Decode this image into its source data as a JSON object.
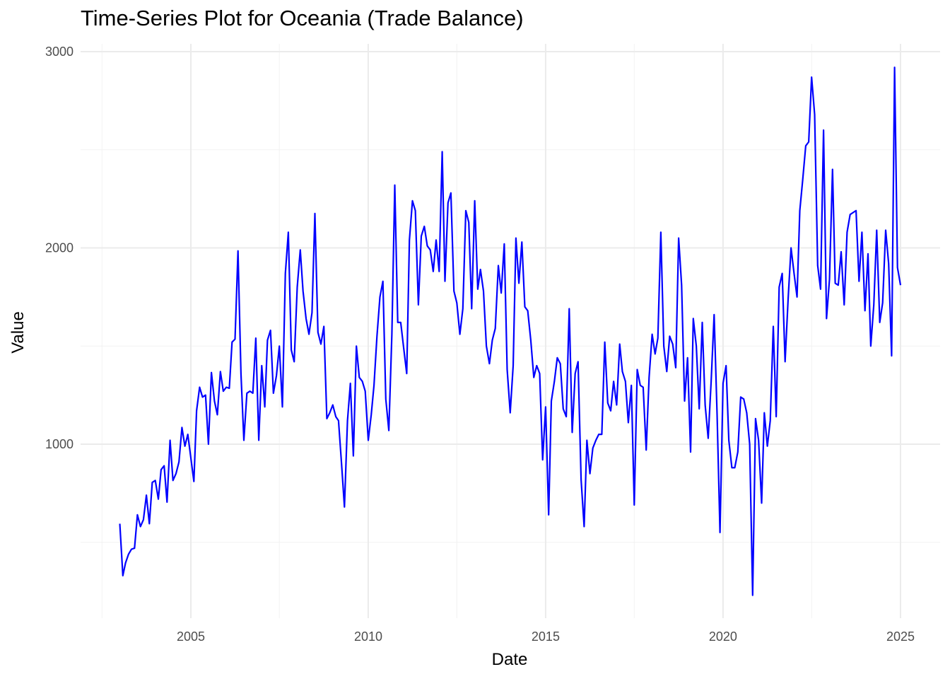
{
  "chart_data": {
    "type": "line",
    "title": "Time-Series Plot for Oceania (Trade Balance)",
    "xlabel": "Date",
    "ylabel": "Value",
    "x_ticks": [
      "2005",
      "2010",
      "2015",
      "2020",
      "2025"
    ],
    "y_ticks": [
      "1000",
      "2000",
      "3000"
    ],
    "xlim": [
      "2002-09-01",
      "2025-07-01"
    ],
    "ylim": [
      160,
      3040
    ],
    "grid": true,
    "legend": "none",
    "line_color": "#0000ff",
    "series": [
      {
        "x": [
          "2003-01-01",
          "2003-02-01",
          "2003-03-01",
          "2003-04-01",
          "2003-05-01",
          "2003-06-01",
          "2003-07-01",
          "2003-08-01",
          "2003-09-01",
          "2003-10-01",
          "2003-11-01",
          "2003-12-01",
          "2004-01-01",
          "2004-02-01",
          "2004-03-01",
          "2004-04-01",
          "2004-05-01",
          "2004-06-01",
          "2004-07-01",
          "2004-08-01",
          "2004-09-01",
          "2004-10-01",
          "2004-11-01",
          "2004-12-01",
          "2005-01-01",
          "2005-02-01",
          "2005-03-01",
          "2005-04-01",
          "2005-05-01",
          "2005-06-01",
          "2005-07-01",
          "2005-08-01",
          "2005-09-01",
          "2005-10-01",
          "2005-11-01",
          "2005-12-01",
          "2006-01-01",
          "2006-02-01",
          "2006-03-01",
          "2006-04-01",
          "2006-05-01",
          "2006-06-01",
          "2006-07-01",
          "2006-08-01",
          "2006-09-01",
          "2006-10-01",
          "2006-11-01",
          "2006-12-01",
          "2007-01-01",
          "2007-02-01",
          "2007-03-01",
          "2007-04-01",
          "2007-05-01",
          "2007-06-01",
          "2007-07-01",
          "2007-08-01",
          "2007-09-01",
          "2007-10-01",
          "2007-11-01",
          "2007-12-01",
          "2008-01-01",
          "2008-02-01",
          "2008-03-01",
          "2008-04-01",
          "2008-05-01",
          "2008-06-01",
          "2008-07-01",
          "2008-08-01",
          "2008-09-01",
          "2008-10-01",
          "2008-11-01",
          "2008-12-01",
          "2009-01-01",
          "2009-02-01",
          "2009-03-01",
          "2009-04-01",
          "2009-05-01",
          "2009-06-01",
          "2009-07-01",
          "2009-08-01",
          "2009-09-01",
          "2009-10-01",
          "2009-11-01",
          "2009-12-01",
          "2010-01-01",
          "2010-02-01",
          "2010-03-01",
          "2010-04-01",
          "2010-05-01",
          "2010-06-01",
          "2010-07-01",
          "2010-08-01",
          "2010-09-01",
          "2010-10-01",
          "2010-11-01",
          "2010-12-01",
          "2011-01-01",
          "2011-02-01",
          "2011-03-01",
          "2011-04-01",
          "2011-05-01",
          "2011-06-01",
          "2011-07-01",
          "2011-08-01",
          "2011-09-01",
          "2011-10-01",
          "2011-11-01",
          "2011-12-01",
          "2012-01-01",
          "2012-02-01",
          "2012-03-01",
          "2012-04-01",
          "2012-05-01",
          "2012-06-01",
          "2012-07-01",
          "2012-08-01",
          "2012-09-01",
          "2012-10-01",
          "2012-11-01",
          "2012-12-01",
          "2013-01-01",
          "2013-02-01",
          "2013-03-01",
          "2013-04-01",
          "2013-05-01",
          "2013-06-01",
          "2013-07-01",
          "2013-08-01",
          "2013-09-01",
          "2013-10-01",
          "2013-11-01",
          "2013-12-01",
          "2014-01-01",
          "2014-02-01",
          "2014-03-01",
          "2014-04-01",
          "2014-05-01",
          "2014-06-01",
          "2014-07-01",
          "2014-08-01",
          "2014-09-01",
          "2014-10-01",
          "2014-11-01",
          "2014-12-01",
          "2015-01-01",
          "2015-02-01",
          "2015-03-01",
          "2015-04-01",
          "2015-05-01",
          "2015-06-01",
          "2015-07-01",
          "2015-08-01",
          "2015-09-01",
          "2015-10-01",
          "2015-11-01",
          "2015-12-01",
          "2016-01-01",
          "2016-02-01",
          "2016-03-01",
          "2016-04-01",
          "2016-05-01",
          "2016-06-01",
          "2016-07-01",
          "2016-08-01",
          "2016-09-01",
          "2016-10-01",
          "2016-11-01",
          "2016-12-01",
          "2017-01-01",
          "2017-02-01",
          "2017-03-01",
          "2017-04-01",
          "2017-05-01",
          "2017-06-01",
          "2017-07-01",
          "2017-08-01",
          "2017-09-01",
          "2017-10-01",
          "2017-11-01",
          "2017-12-01",
          "2018-01-01",
          "2018-02-01",
          "2018-03-01",
          "2018-04-01",
          "2018-05-01",
          "2018-06-01",
          "2018-07-01",
          "2018-08-01",
          "2018-09-01",
          "2018-10-01",
          "2018-11-01",
          "2018-12-01",
          "2019-01-01",
          "2019-02-01",
          "2019-03-01",
          "2019-04-01",
          "2019-05-01",
          "2019-06-01",
          "2019-07-01",
          "2019-08-01",
          "2019-09-01",
          "2019-10-01",
          "2019-11-01",
          "2019-12-01",
          "2020-01-01",
          "2020-02-01",
          "2020-03-01",
          "2020-04-01",
          "2020-05-01",
          "2020-06-01",
          "2020-07-01",
          "2020-08-01",
          "2020-09-01",
          "2020-10-01",
          "2020-11-01",
          "2020-12-01",
          "2021-01-01",
          "2021-02-01",
          "2021-03-01",
          "2021-04-01",
          "2021-05-01",
          "2021-06-01",
          "2021-07-01",
          "2021-08-01",
          "2021-09-01",
          "2021-10-01",
          "2021-11-01",
          "2021-12-01",
          "2022-01-01",
          "2022-02-01",
          "2022-03-01",
          "2022-04-01",
          "2022-05-01",
          "2022-06-01",
          "2022-07-01",
          "2022-08-01",
          "2022-09-01",
          "2022-10-01",
          "2022-11-01",
          "2022-12-01",
          "2023-01-01",
          "2023-02-01",
          "2023-03-01",
          "2023-04-01",
          "2023-05-01",
          "2023-06-01",
          "2023-07-01",
          "2023-08-01",
          "2023-09-01",
          "2023-10-01",
          "2023-11-01",
          "2023-12-01",
          "2024-01-01",
          "2024-02-01",
          "2024-03-01",
          "2024-04-01",
          "2024-05-01",
          "2024-06-01",
          "2024-07-01",
          "2024-08-01",
          "2024-09-01",
          "2024-10-01",
          "2024-11-01",
          "2024-12-01",
          "2025-01-01"
        ],
        "values": [
          595,
          330,
          395,
          440,
          465,
          470,
          640,
          580,
          615,
          740,
          595,
          805,
          815,
          720,
          870,
          890,
          705,
          1020,
          815,
          850,
          910,
          1085,
          990,
          1050,
          930,
          810,
          1170,
          1290,
          1240,
          1250,
          1000,
          1365,
          1220,
          1150,
          1370,
          1270,
          1290,
          1285,
          1520,
          1535,
          1985,
          1360,
          1020,
          1260,
          1270,
          1260,
          1540,
          1020,
          1400,
          1190,
          1530,
          1580,
          1260,
          1350,
          1500,
          1190,
          1870,
          2080,
          1480,
          1420,
          1800,
          1990,
          1780,
          1640,
          1560,
          1670,
          2175,
          1570,
          1510,
          1600,
          1130,
          1160,
          1200,
          1140,
          1120,
          900,
          680,
          1120,
          1310,
          940,
          1500,
          1340,
          1320,
          1270,
          1020,
          1150,
          1300,
          1550,
          1750,
          1830,
          1230,
          1070,
          1560,
          2320,
          1620,
          1620,
          1490,
          1360,
          2040,
          2240,
          2190,
          1710,
          2060,
          2110,
          2010,
          1990,
          1880,
          2040,
          1880,
          2490,
          1830,
          2230,
          2280,
          1780,
          1720,
          1560,
          1690,
          2190,
          2130,
          1690,
          2240,
          1790,
          1890,
          1780,
          1500,
          1410,
          1530,
          1590,
          1910,
          1770,
          2020,
          1380,
          1160,
          1400,
          2050,
          1820,
          2030,
          1700,
          1680,
          1530,
          1340,
          1400,
          1360,
          920,
          1190,
          640,
          1220,
          1320,
          1440,
          1410,
          1180,
          1140,
          1690,
          1060,
          1360,
          1420,
          820,
          580,
          1020,
          850,
          980,
          1020,
          1050,
          1050,
          1520,
          1210,
          1170,
          1320,
          1200,
          1510,
          1370,
          1320,
          1110,
          1300,
          690,
          1380,
          1300,
          1290,
          970,
          1340,
          1560,
          1460,
          1540,
          2080,
          1500,
          1370,
          1550,
          1510,
          1390,
          2050,
          1810,
          1220,
          1440,
          960,
          1640,
          1500,
          1180,
          1620,
          1200,
          1030,
          1320,
          1660,
          1150,
          550,
          1310,
          1400,
          1020,
          880,
          880,
          960,
          1240,
          1230,
          1160,
          1000,
          230,
          1130,
          1020,
          700,
          1160,
          990,
          1120,
          1600,
          1140,
          1800,
          1870,
          1420,
          1740,
          2000,
          1870,
          1750,
          2190,
          2350,
          2520,
          2540,
          2870,
          2680,
          1910,
          1790,
          2600,
          1640,
          1840,
          2400,
          1820,
          1810,
          1980,
          1710,
          2080,
          2170,
          2180,
          2190,
          1830,
          2080,
          1680,
          1970,
          1500,
          1710,
          2090,
          1620,
          1720,
          2090,
          1920,
          1450,
          2920,
          1900,
          1810
        ]
      }
    ]
  }
}
